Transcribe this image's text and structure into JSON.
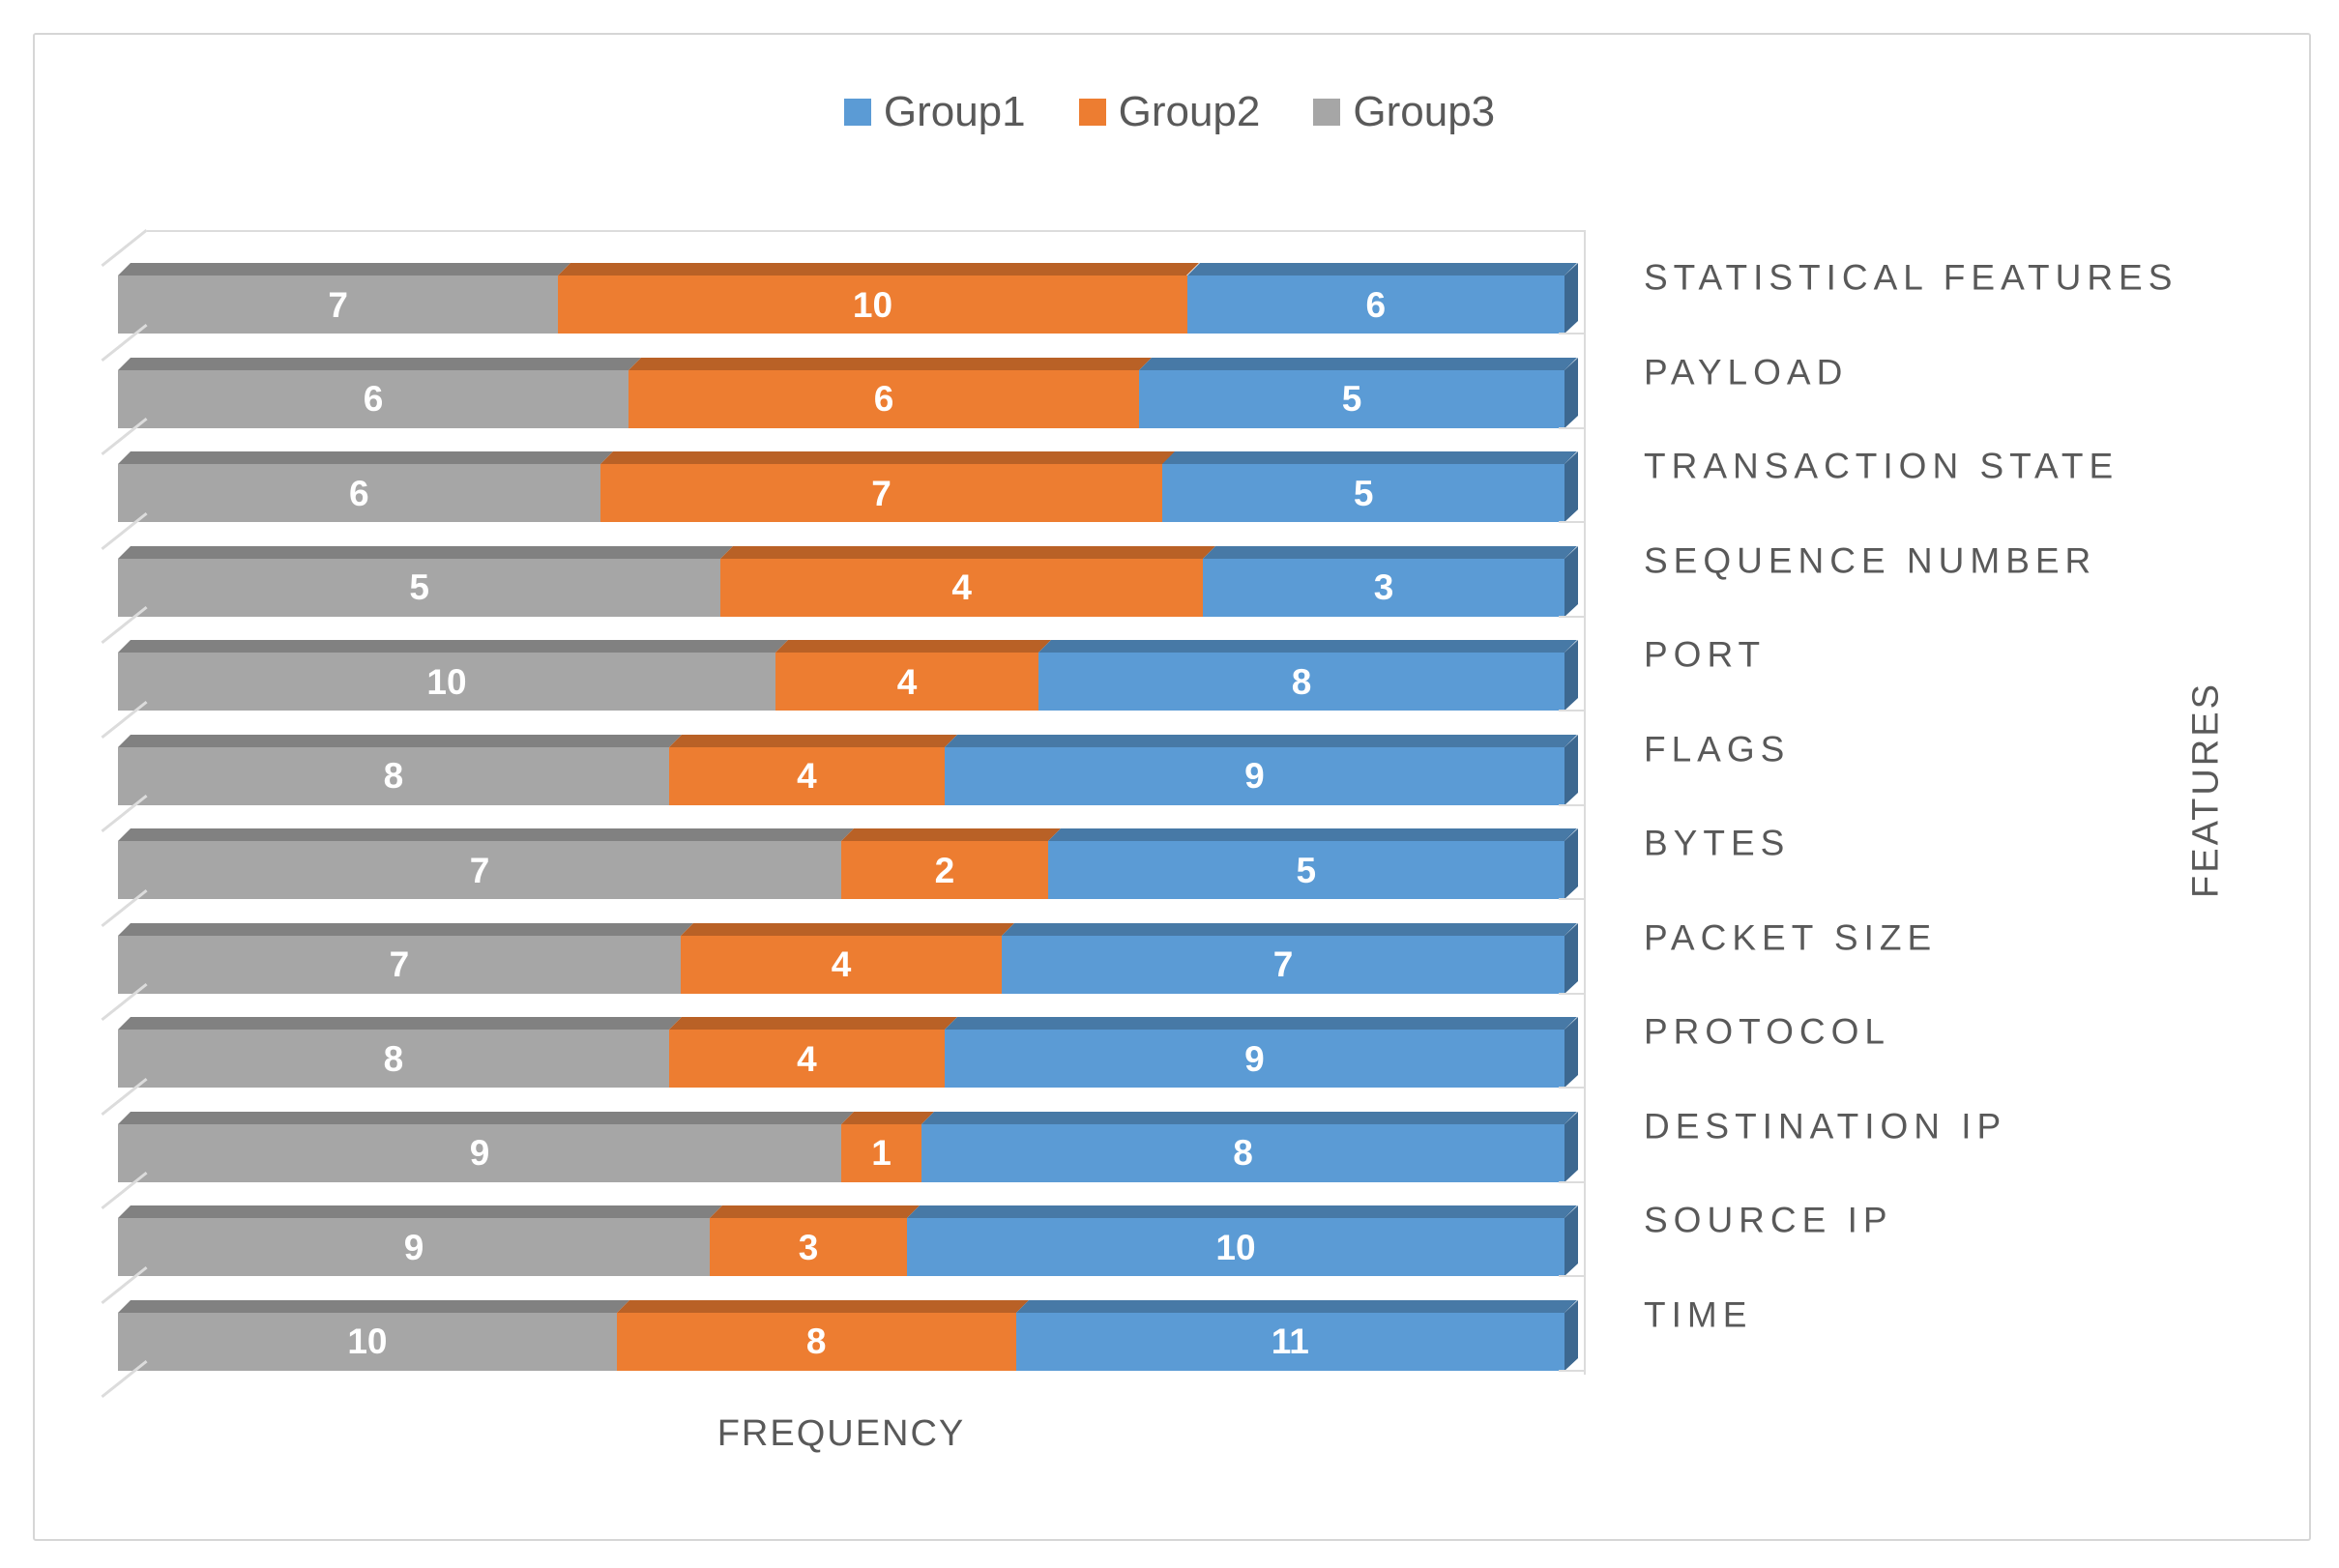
{
  "figure": {
    "background": "#FFFFFF",
    "border_color": "#D6D6D6",
    "text_color": "#595959",
    "gridline_color": "#DCDCDC"
  },
  "legend": {
    "position": "top-center",
    "items": [
      {
        "label": "Group1",
        "color": "#5B9BD5"
      },
      {
        "label": "Group2",
        "color": "#ED7D31"
      },
      {
        "label": "Group3",
        "color": "#A6A6A6"
      }
    ]
  },
  "chart_data": {
    "type": "bar",
    "variant": "3d-100-percent-stacked-horizontal",
    "title": "",
    "xlabel": "FREQUENCY",
    "ylabel": "FEATURES",
    "legend_position": "top",
    "data_labels": "shown-white-bold",
    "categories": [
      "STATISTICAL FEATURES",
      "PAYLOAD",
      "TRANSACTION STATE",
      "SEQUENCE NUMBER",
      "PORT",
      "FLAGS",
      "BYTES",
      "PACKET SIZE",
      "PROTOCOL",
      "DESTINATION IP",
      "SOURCE IP",
      "TIME"
    ],
    "series": [
      {
        "name": "Group1",
        "color": "#5B9BD5",
        "top_color": "#4779A6",
        "side_color": "#3D6890",
        "values": [
          6,
          5,
          5,
          3,
          8,
          9,
          5,
          7,
          9,
          8,
          10,
          11
        ]
      },
      {
        "name": "Group2",
        "color": "#ED7D31",
        "top_color": "#B96126",
        "side_color": "#9C5220",
        "values": [
          10,
          6,
          7,
          4,
          4,
          4,
          2,
          4,
          4,
          1,
          3,
          8
        ]
      },
      {
        "name": "Group3",
        "color": "#A6A6A6",
        "top_color": "#818181",
        "side_color": "#6F6F6F",
        "values": [
          7,
          6,
          6,
          5,
          10,
          8,
          7,
          7,
          8,
          9,
          9,
          10
        ]
      }
    ],
    "segment_order_left_to_right": [
      "Group3",
      "Group2",
      "Group1"
    ]
  }
}
